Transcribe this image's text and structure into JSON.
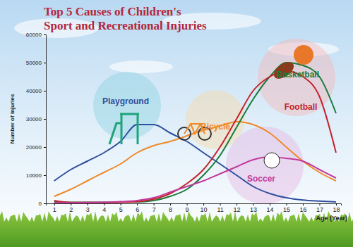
{
  "chart_data": {
    "type": "line",
    "title": "Top 5 Causes of Children's",
    "subtitle": "Sport and Recreational Injuries",
    "y_label": "Number of Injuries",
    "x_label": "Age (Year)",
    "x": [
      1,
      2,
      3,
      4,
      5,
      6,
      7,
      8,
      9,
      10,
      11,
      12,
      13,
      14,
      15,
      16,
      17,
      18
    ],
    "xlim": [
      0.5,
      18.3
    ],
    "xticks": [
      1,
      2,
      3,
      4,
      5,
      6,
      7,
      8,
      9,
      10,
      11,
      12,
      13,
      14,
      15,
      16,
      17,
      18
    ],
    "ylim": [
      0,
      60000
    ],
    "yticks": [
      0,
      10000,
      20000,
      30000,
      40000,
      50000,
      60000
    ],
    "grid": false,
    "series": [
      {
        "name": "Playground",
        "color": "#2f4f9f",
        "values": [
          8000,
          12000,
          15000,
          18000,
          22000,
          28000,
          28000,
          25000,
          22000,
          18000,
          14000,
          10000,
          6000,
          3500,
          2000,
          1200,
          800,
          500
        ]
      },
      {
        "name": "Bicycle",
        "color": "#ef8a2a",
        "values": [
          2500,
          5000,
          8000,
          11000,
          14000,
          18000,
          20500,
          22000,
          24000,
          26000,
          27500,
          29000,
          28000,
          25000,
          20000,
          15000,
          11000,
          8000
        ]
      },
      {
        "name": "Basketball",
        "color": "#1b7a3a",
        "values": [
          500,
          400,
          400,
          400,
          500,
          500,
          1000,
          2500,
          5000,
          10000,
          17000,
          27000,
          37000,
          45000,
          50000,
          49000,
          45000,
          32000
        ]
      },
      {
        "name": "Football",
        "color": "#c4232c",
        "values": [
          1000,
          300,
          300,
          300,
          400,
          600,
          1500,
          3500,
          7000,
          12000,
          20000,
          30000,
          40000,
          45000,
          47000,
          45000,
          38000,
          18000
        ]
      },
      {
        "name": "Soccer",
        "color": "#c2399b",
        "values": [
          200,
          200,
          300,
          400,
          600,
          1000,
          2000,
          4000,
          6000,
          8000,
          10500,
          13000,
          15500,
          16500,
          16000,
          15000,
          12000,
          9000
        ]
      }
    ]
  }
}
